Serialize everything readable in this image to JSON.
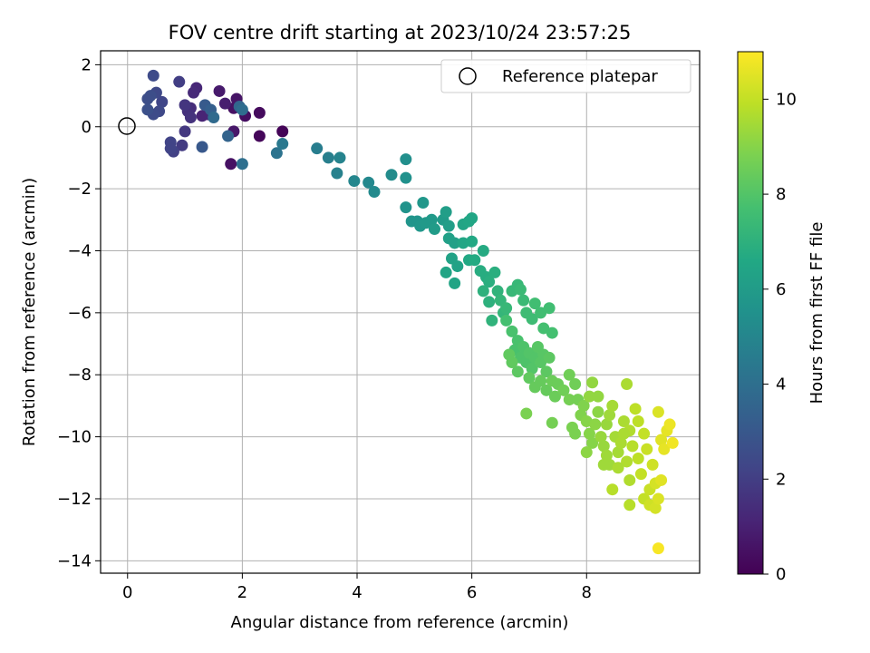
{
  "chart_data": {
    "type": "scatter",
    "title": "FOV centre drift starting at 2023/10/24 23:57:25",
    "xlabel": "Angular distance from reference (arcmin)",
    "ylabel": "Rotation from reference (arcmin)",
    "xlim": [
      -0.47,
      9.97
    ],
    "ylim": [
      -14.4,
      2.45
    ],
    "x_ticks": [
      0,
      2,
      4,
      6,
      8
    ],
    "y_ticks": [
      2,
      0,
      -2,
      -4,
      -6,
      -8,
      -10,
      -12,
      -14
    ],
    "grid": true,
    "legend": {
      "placement": "top-right",
      "entries": [
        {
          "label": "Reference platepar",
          "marker": "open-circle"
        }
      ]
    },
    "reference_point": {
      "x": 0,
      "y": 0
    },
    "colorbar": {
      "label": "Hours from first FF file",
      "colormap": "viridis",
      "range": [
        0,
        11
      ],
      "ticks": [
        0,
        2,
        4,
        6,
        8,
        10
      ]
    },
    "series": [
      {
        "points": [
          [
            2.7,
            -0.15,
            0.1
          ],
          [
            2.3,
            -0.3,
            0.2
          ],
          [
            2.3,
            0.45,
            0.3
          ],
          [
            2.05,
            0.35,
            0.4
          ],
          [
            1.8,
            -1.2,
            0.5
          ],
          [
            1.85,
            0.6,
            0.5
          ],
          [
            1.9,
            0.9,
            0.6
          ],
          [
            1.85,
            -0.15,
            0.7
          ],
          [
            1.6,
            1.15,
            0.8
          ],
          [
            1.7,
            0.75,
            0.9
          ],
          [
            1.4,
            0.4,
            1.0
          ],
          [
            1.3,
            0.35,
            1.1
          ],
          [
            1.2,
            1.25,
            1.2
          ],
          [
            1.15,
            1.1,
            1.3
          ],
          [
            1.1,
            0.6,
            1.4
          ],
          [
            1.05,
            0.5,
            1.5
          ],
          [
            1.1,
            0.3,
            1.6
          ],
          [
            1.0,
            0.7,
            1.7
          ],
          [
            1.0,
            -0.15,
            1.8
          ],
          [
            0.95,
            -0.6,
            1.9
          ],
          [
            0.9,
            1.45,
            2.0
          ],
          [
            0.8,
            -0.8,
            2.1
          ],
          [
            0.75,
            -0.5,
            2.2
          ],
          [
            0.75,
            -0.7,
            2.2
          ],
          [
            0.6,
            0.8,
            2.3
          ],
          [
            0.55,
            0.5,
            2.4
          ],
          [
            0.5,
            1.1,
            2.4
          ],
          [
            0.45,
            1.65,
            2.5
          ],
          [
            0.45,
            0.4,
            2.5
          ],
          [
            0.4,
            1.0,
            2.6
          ],
          [
            0.35,
            0.9,
            2.6
          ],
          [
            0.35,
            0.55,
            2.7
          ],
          [
            1.3,
            -0.65,
            3.0
          ],
          [
            1.35,
            0.7,
            3.1
          ],
          [
            1.45,
            0.55,
            3.3
          ],
          [
            1.75,
            -0.3,
            3.5
          ],
          [
            1.95,
            0.65,
            3.6
          ],
          [
            1.5,
            0.3,
            3.8
          ],
          [
            2.0,
            0.55,
            3.9
          ],
          [
            2.0,
            -1.2,
            4.0
          ],
          [
            2.6,
            -0.85,
            4.2
          ],
          [
            2.7,
            -0.55,
            4.4
          ],
          [
            3.3,
            -0.7,
            4.6
          ],
          [
            3.5,
            -1.0,
            4.7
          ],
          [
            3.65,
            -1.5,
            4.8
          ],
          [
            3.7,
            -1.0,
            4.9
          ],
          [
            3.95,
            -1.75,
            5.0
          ],
          [
            4.2,
            -1.8,
            5.1
          ],
          [
            4.3,
            -2.1,
            5.2
          ],
          [
            4.6,
            -1.55,
            5.3
          ],
          [
            4.85,
            -1.05,
            5.4
          ],
          [
            4.85,
            -1.65,
            5.5
          ],
          [
            4.85,
            -2.6,
            5.6
          ],
          [
            4.95,
            -3.05,
            5.7
          ],
          [
            5.05,
            -3.05,
            5.7
          ],
          [
            5.1,
            -3.2,
            5.8
          ],
          [
            5.15,
            -2.45,
            5.8
          ],
          [
            5.2,
            -3.1,
            5.9
          ],
          [
            5.3,
            -3.0,
            5.9
          ],
          [
            5.35,
            -3.3,
            6.0
          ],
          [
            5.5,
            -3.0,
            6.0
          ],
          [
            5.55,
            -2.75,
            6.1
          ],
          [
            5.6,
            -3.2,
            6.1
          ],
          [
            5.6,
            -3.6,
            6.2
          ],
          [
            5.7,
            -3.75,
            6.2
          ],
          [
            5.65,
            -4.25,
            6.3
          ],
          [
            5.75,
            -4.5,
            6.3
          ],
          [
            5.55,
            -4.7,
            6.4
          ],
          [
            5.7,
            -5.05,
            6.4
          ],
          [
            5.85,
            -3.15,
            6.4
          ],
          [
            5.95,
            -3.05,
            6.5
          ],
          [
            6.0,
            -2.95,
            6.5
          ],
          [
            5.85,
            -3.75,
            6.5
          ],
          [
            5.95,
            -4.3,
            6.6
          ],
          [
            6.0,
            -3.7,
            6.6
          ],
          [
            6.05,
            -4.3,
            6.7
          ],
          [
            6.2,
            -4.0,
            6.7
          ],
          [
            6.15,
            -4.65,
            6.8
          ],
          [
            6.25,
            -4.85,
            6.8
          ],
          [
            6.3,
            -5.0,
            6.9
          ],
          [
            6.4,
            -4.7,
            6.9
          ],
          [
            6.2,
            -5.3,
            7.0
          ],
          [
            6.3,
            -5.65,
            7.0
          ],
          [
            6.45,
            -5.3,
            7.1
          ],
          [
            6.35,
            -6.25,
            7.1
          ],
          [
            6.5,
            -5.6,
            7.2
          ],
          [
            6.55,
            -6.0,
            7.2
          ],
          [
            6.6,
            -5.85,
            7.3
          ],
          [
            6.7,
            -5.3,
            7.3
          ],
          [
            6.8,
            -5.1,
            7.3
          ],
          [
            6.85,
            -5.25,
            7.4
          ],
          [
            6.9,
            -5.6,
            7.4
          ],
          [
            6.95,
            -6.0,
            7.5
          ],
          [
            7.05,
            -6.2,
            7.5
          ],
          [
            7.1,
            -5.7,
            7.6
          ],
          [
            7.2,
            -6.0,
            7.6
          ],
          [
            7.35,
            -5.85,
            7.6
          ],
          [
            7.25,
            -6.5,
            7.7
          ],
          [
            7.4,
            -6.65,
            7.7
          ],
          [
            6.6,
            -6.25,
            7.7
          ],
          [
            6.7,
            -6.6,
            7.8
          ],
          [
            6.8,
            -6.9,
            7.8
          ],
          [
            6.75,
            -7.2,
            7.8
          ],
          [
            6.85,
            -7.45,
            7.9
          ],
          [
            6.9,
            -7.1,
            7.9
          ],
          [
            6.95,
            -7.6,
            7.9
          ],
          [
            7.0,
            -7.3,
            8.0
          ],
          [
            7.05,
            -7.8,
            8.0
          ],
          [
            7.1,
            -7.45,
            8.0
          ],
          [
            7.15,
            -7.1,
            8.1
          ],
          [
            7.2,
            -7.6,
            8.1
          ],
          [
            7.25,
            -7.35,
            8.1
          ],
          [
            7.3,
            -7.9,
            8.2
          ],
          [
            7.35,
            -7.45,
            8.2
          ],
          [
            6.8,
            -7.9,
            8.2
          ],
          [
            6.7,
            -7.6,
            8.3
          ],
          [
            6.65,
            -7.35,
            8.3
          ],
          [
            7.0,
            -8.1,
            8.3
          ],
          [
            7.1,
            -8.4,
            8.4
          ],
          [
            7.2,
            -8.2,
            8.4
          ],
          [
            7.3,
            -8.5,
            8.4
          ],
          [
            7.4,
            -8.2,
            8.5
          ],
          [
            7.45,
            -8.7,
            8.5
          ],
          [
            7.5,
            -8.3,
            8.5
          ],
          [
            7.6,
            -8.5,
            8.6
          ],
          [
            7.7,
            -8.0,
            8.6
          ],
          [
            7.8,
            -8.3,
            8.6
          ],
          [
            7.7,
            -8.8,
            8.7
          ],
          [
            7.85,
            -8.8,
            8.7
          ],
          [
            7.4,
            -9.55,
            8.7
          ],
          [
            6.95,
            -9.25,
            8.8
          ],
          [
            7.75,
            -9.7,
            8.8
          ],
          [
            7.8,
            -9.9,
            8.8
          ],
          [
            7.9,
            -9.3,
            8.9
          ],
          [
            7.95,
            -9.0,
            8.9
          ],
          [
            8.0,
            -9.5,
            9.0
          ],
          [
            8.05,
            -9.9,
            9.0
          ],
          [
            8.1,
            -10.2,
            9.0
          ],
          [
            8.15,
            -9.6,
            9.1
          ],
          [
            8.2,
            -9.2,
            9.1
          ],
          [
            8.0,
            -10.5,
            9.1
          ],
          [
            8.05,
            -8.7,
            9.2
          ],
          [
            8.1,
            -8.25,
            9.2
          ],
          [
            8.2,
            -8.7,
            9.2
          ],
          [
            8.25,
            -10.0,
            9.3
          ],
          [
            8.3,
            -10.3,
            9.3
          ],
          [
            8.35,
            -9.6,
            9.3
          ],
          [
            8.4,
            -9.3,
            9.4
          ],
          [
            8.35,
            -10.6,
            9.4
          ],
          [
            8.4,
            -10.9,
            9.4
          ],
          [
            8.45,
            -9.0,
            9.5
          ],
          [
            8.5,
            -10.0,
            9.5
          ],
          [
            8.55,
            -10.5,
            9.5
          ],
          [
            8.6,
            -10.2,
            9.6
          ],
          [
            8.65,
            -9.5,
            9.6
          ],
          [
            8.7,
            -8.3,
            9.6
          ],
          [
            8.7,
            -10.8,
            9.7
          ],
          [
            8.75,
            -9.8,
            9.7
          ],
          [
            8.75,
            -11.4,
            9.7
          ],
          [
            8.8,
            -10.3,
            9.8
          ],
          [
            8.45,
            -11.7,
            9.8
          ],
          [
            8.75,
            -12.2,
            9.8
          ],
          [
            8.85,
            -9.1,
            9.9
          ],
          [
            8.9,
            -9.5,
            9.9
          ],
          [
            8.9,
            -10.7,
            9.9
          ],
          [
            8.95,
            -11.2,
            10.0
          ],
          [
            9.0,
            -9.9,
            10.0
          ],
          [
            9.0,
            -12.0,
            10.0
          ],
          [
            9.05,
            -10.4,
            10.1
          ],
          [
            9.1,
            -11.7,
            10.1
          ],
          [
            9.1,
            -12.2,
            10.2
          ],
          [
            9.15,
            -10.9,
            10.2
          ],
          [
            9.2,
            -11.5,
            10.3
          ],
          [
            9.2,
            -12.3,
            10.3
          ],
          [
            9.25,
            -9.2,
            10.4
          ],
          [
            9.25,
            -12.0,
            10.4
          ],
          [
            9.3,
            -10.1,
            10.5
          ],
          [
            9.3,
            -11.4,
            10.5
          ],
          [
            9.35,
            -10.4,
            10.6
          ],
          [
            9.4,
            -9.8,
            10.6
          ],
          [
            9.45,
            -9.6,
            10.7
          ],
          [
            9.5,
            -10.2,
            10.8
          ],
          [
            9.25,
            -13.6,
            10.9
          ],
          [
            8.65,
            -9.9,
            9.6
          ],
          [
            8.55,
            -11.0,
            9.6
          ],
          [
            8.3,
            -10.9,
            9.4
          ]
        ]
      }
    ]
  }
}
